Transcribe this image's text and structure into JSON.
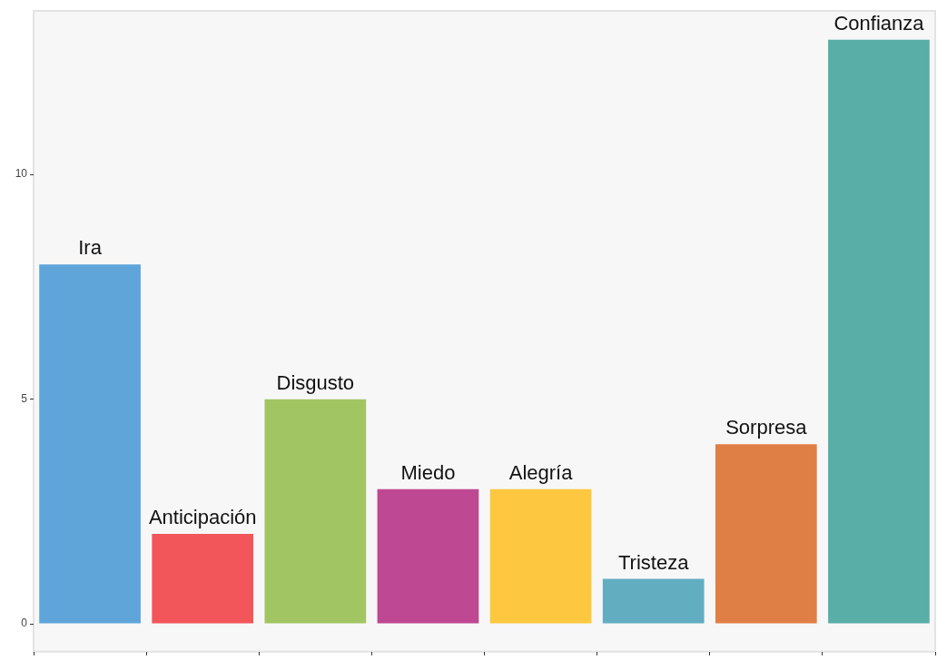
{
  "chart_data": {
    "type": "bar",
    "categories": [
      "Ira",
      "Anticipación",
      "Disgusto",
      "Miedo",
      "Alegría",
      "Tristeza",
      "Sorpresa",
      "Confianza"
    ],
    "values": [
      8,
      2,
      5,
      3,
      3,
      1,
      4,
      13
    ],
    "colors": [
      "#5fa5d9",
      "#f2555a",
      "#a2c563",
      "#be4891",
      "#fdc840",
      "#63adc1",
      "#e07f45",
      "#59aea7"
    ],
    "ylim": [
      -0.62,
      13.64
    ],
    "yticks": [
      0,
      5,
      10
    ],
    "grid": false,
    "legend": false
  }
}
